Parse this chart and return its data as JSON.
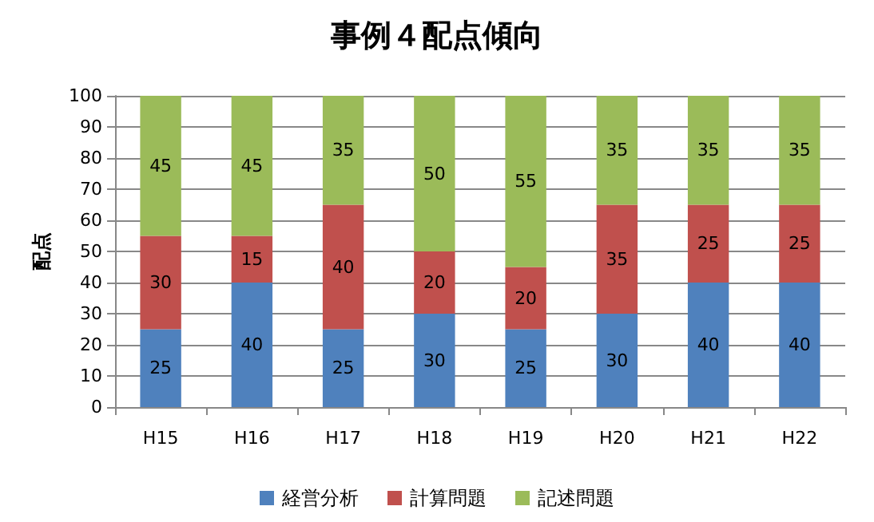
{
  "chart_data": {
    "type": "bar",
    "title": "事例４配点傾向",
    "ylabel": "配点",
    "categories": [
      "H15",
      "H16",
      "H17",
      "H18",
      "H19",
      "H20",
      "H21",
      "H22"
    ],
    "series": [
      {
        "name": "経営分析",
        "color": "#4f81bd",
        "values": [
          25,
          40,
          25,
          30,
          25,
          30,
          40,
          40
        ]
      },
      {
        "name": "計算問題",
        "color": "#c0504d",
        "values": [
          30,
          15,
          40,
          20,
          20,
          35,
          25,
          25
        ]
      },
      {
        "name": "記述問題",
        "color": "#9bbb59",
        "values": [
          45,
          45,
          35,
          50,
          55,
          35,
          35,
          35
        ]
      }
    ],
    "stacked": true,
    "data_labels": true,
    "ylim": [
      0,
      100
    ],
    "yticks": [
      0,
      10,
      20,
      30,
      40,
      50,
      60,
      70,
      80,
      90,
      100
    ],
    "grid": "y",
    "legend": "bottom"
  }
}
